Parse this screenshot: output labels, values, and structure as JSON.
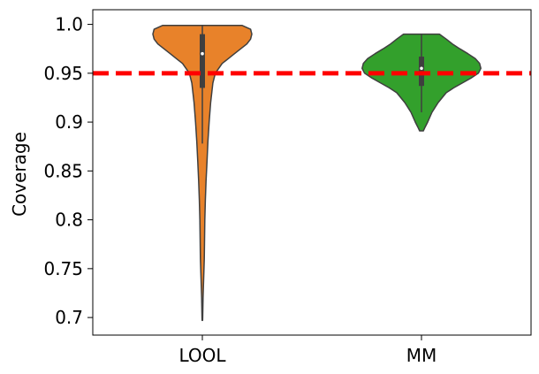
{
  "chart_data": {
    "type": "violin",
    "title": "",
    "xlabel": "",
    "ylabel": "Coverage",
    "ylim": [
      0.682,
      1.015
    ],
    "y_ticks": [
      0.7,
      0.75,
      0.8,
      0.85,
      0.9,
      0.95,
      1.0
    ],
    "y_tick_labels": [
      "0.7",
      "0.75",
      "0.8",
      "0.85",
      "0.9",
      "0.95",
      "1.0"
    ],
    "categories": [
      "LOOL",
      "MM"
    ],
    "reference_line": {
      "value": 0.95,
      "style": "dashed",
      "color": "#ff0000"
    },
    "series": [
      {
        "category": "LOOL",
        "color": "#e8822a",
        "min": 0.697,
        "max": 0.999,
        "q1": 0.935,
        "median": 0.97,
        "q3": 0.99,
        "whisker_low": 0.878,
        "whisker_high": 0.999,
        "density": [
          [
            0.999,
            0.64
          ],
          [
            0.995,
            0.78
          ],
          [
            0.99,
            0.8
          ],
          [
            0.985,
            0.78
          ],
          [
            0.98,
            0.72
          ],
          [
            0.975,
            0.62
          ],
          [
            0.97,
            0.52
          ],
          [
            0.965,
            0.42
          ],
          [
            0.96,
            0.32
          ],
          [
            0.95,
            0.21
          ],
          [
            0.94,
            0.17
          ],
          [
            0.92,
            0.135
          ],
          [
            0.9,
            0.11
          ],
          [
            0.88,
            0.09
          ],
          [
            0.86,
            0.075
          ],
          [
            0.84,
            0.06
          ],
          [
            0.82,
            0.048
          ],
          [
            0.8,
            0.04
          ],
          [
            0.78,
            0.036
          ],
          [
            0.76,
            0.032
          ],
          [
            0.74,
            0.022
          ],
          [
            0.72,
            0.012
          ],
          [
            0.7,
            0.006
          ],
          [
            0.697,
            0.004
          ]
        ]
      },
      {
        "category": "MM",
        "color": "#33a02c",
        "min": 0.891,
        "max": 0.99,
        "q1": 0.937,
        "median": 0.955,
        "q3": 0.967,
        "whisker_low": 0.91,
        "whisker_high": 0.99,
        "density": [
          [
            0.99,
            0.29
          ],
          [
            0.985,
            0.4
          ],
          [
            0.98,
            0.5
          ],
          [
            0.975,
            0.62
          ],
          [
            0.97,
            0.75
          ],
          [
            0.965,
            0.87
          ],
          [
            0.96,
            0.94
          ],
          [
            0.955,
            0.96
          ],
          [
            0.95,
            0.92
          ],
          [
            0.945,
            0.8
          ],
          [
            0.94,
            0.66
          ],
          [
            0.935,
            0.52
          ],
          [
            0.93,
            0.4
          ],
          [
            0.92,
            0.27
          ],
          [
            0.91,
            0.17
          ],
          [
            0.9,
            0.1
          ],
          [
            0.895,
            0.06
          ],
          [
            0.891,
            0.03
          ]
        ]
      }
    ]
  }
}
